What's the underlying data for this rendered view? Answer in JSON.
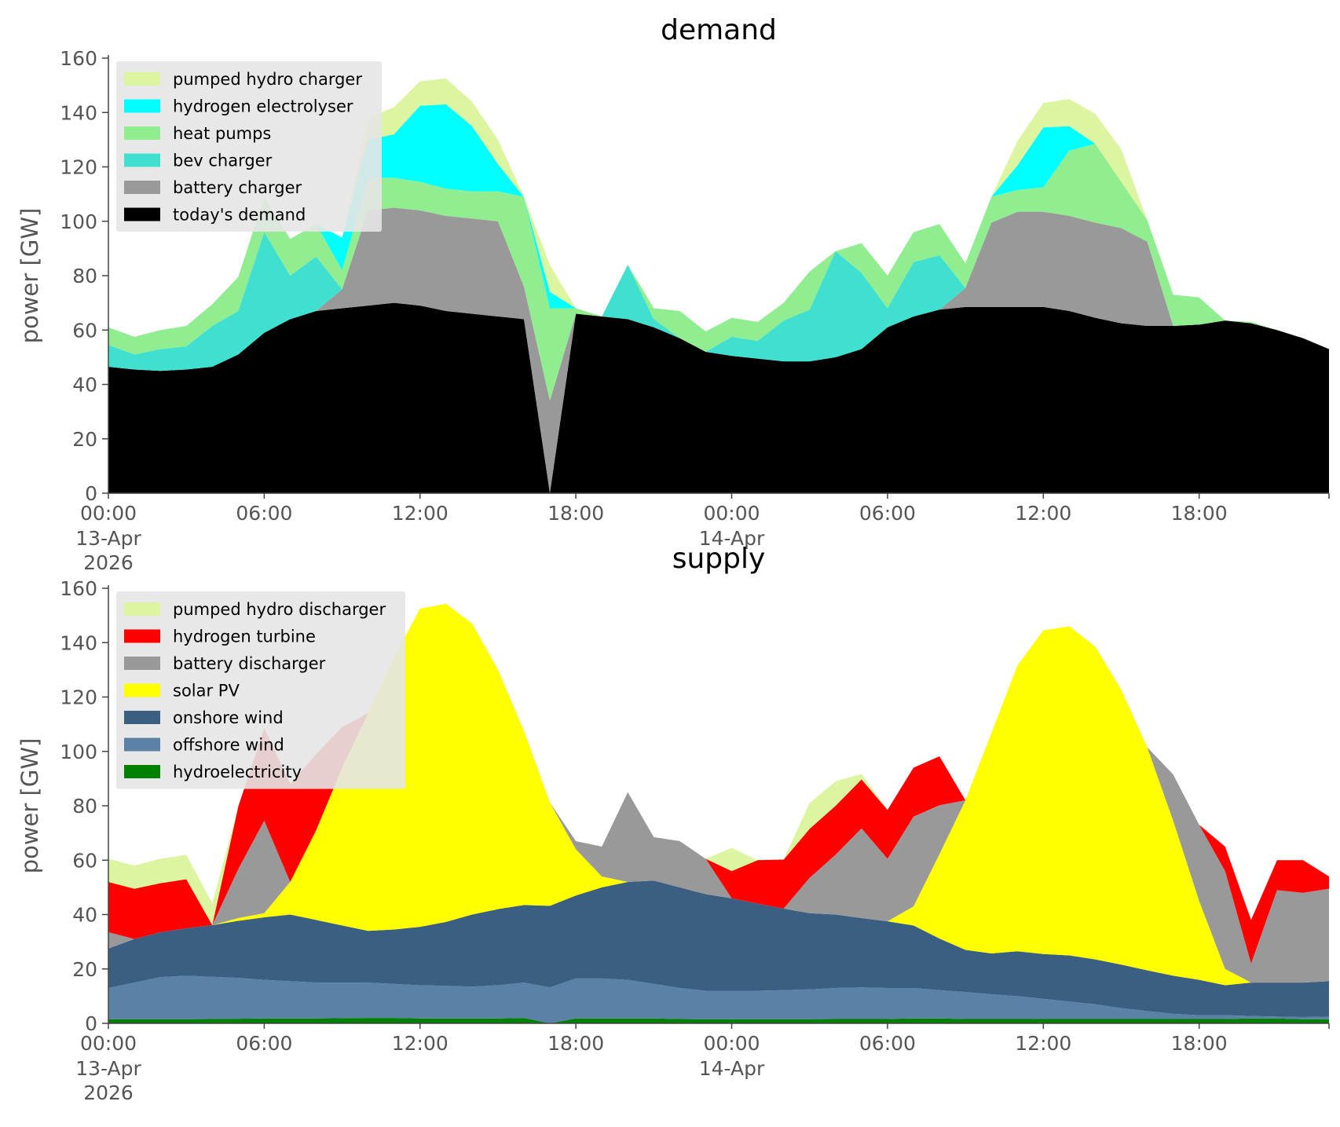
{
  "chart_data": [
    {
      "type": "area",
      "stacked": true,
      "title": "demand",
      "ylabel": "power [GW]",
      "ylim": [
        0,
        160
      ],
      "yticks": [
        0,
        20,
        40,
        60,
        80,
        100,
        120,
        140,
        160
      ],
      "x_hours": [
        0,
        1,
        2,
        3,
        4,
        5,
        6,
        7,
        8,
        9,
        10,
        11,
        12,
        13,
        14,
        15,
        16,
        17,
        18,
        19,
        20,
        21,
        22,
        23,
        24,
        25,
        26,
        27,
        28,
        29,
        30,
        31,
        32,
        33,
        34,
        35,
        36,
        37,
        38,
        39,
        40,
        41,
        42,
        43,
        44,
        45,
        46,
        47
      ],
      "xlim": [
        0,
        47
      ],
      "xticks": [
        {
          "hour": 0,
          "line1": "00:00",
          "line2": "13-Apr",
          "line3": "2026"
        },
        {
          "hour": 6,
          "line1": "06:00",
          "line2": "",
          "line3": ""
        },
        {
          "hour": 12,
          "line1": "12:00",
          "line2": "",
          "line3": ""
        },
        {
          "hour": 18,
          "line1": "18:00",
          "line2": "",
          "line3": ""
        },
        {
          "hour": 24,
          "line1": "00:00",
          "line2": "14-Apr",
          "line3": ""
        },
        {
          "hour": 30,
          "line1": "06:00",
          "line2": "",
          "line3": ""
        },
        {
          "hour": 36,
          "line1": "12:00",
          "line2": "",
          "line3": ""
        },
        {
          "hour": 42,
          "line1": "18:00",
          "line2": "",
          "line3": ""
        }
      ],
      "legend_position": "top-left",
      "series": [
        {
          "name": "today's demand",
          "color": "#000000",
          "values": [
            46.5,
            45.5,
            45,
            45.5,
            46.5,
            51,
            59,
            64,
            67,
            68,
            69,
            70,
            69,
            67,
            66,
            65,
            64,
            0,
            66,
            65,
            64,
            61,
            57,
            52,
            50.5,
            49.5,
            48.5,
            48.5,
            50,
            53,
            61,
            65,
            67.5,
            68.5,
            68.5,
            68.5,
            68.5,
            67,
            64.5,
            62.5,
            61.5,
            61.5,
            62,
            63.5,
            62.5,
            60,
            57,
            53
          ]
        },
        {
          "name": "battery charger",
          "color": "#999999",
          "values": [
            0,
            0,
            0,
            0,
            0,
            0,
            0,
            0,
            0,
            7,
            35,
            35,
            35,
            35,
            35,
            35,
            12,
            34,
            0,
            0,
            0,
            0,
            0,
            0,
            0,
            0,
            0,
            0,
            0,
            0,
            0,
            0,
            0,
            7,
            31,
            35,
            35,
            35,
            35,
            35,
            31,
            0,
            0,
            0,
            0,
            0,
            0,
            0
          ]
        },
        {
          "name": "bev charger",
          "color": "#40e0d0",
          "values": [
            8,
            5.5,
            8,
            8.5,
            15,
            16,
            37,
            16,
            20,
            0,
            0,
            0,
            0,
            0,
            0,
            0,
            0,
            0,
            0,
            0,
            20,
            3,
            0,
            0,
            7,
            6.5,
            15,
            19,
            39,
            28,
            7,
            20,
            20,
            0,
            0,
            0,
            0,
            0,
            0,
            0,
            0,
            0,
            0,
            0,
            0,
            0,
            0,
            0
          ]
        },
        {
          "name": "heat pumps",
          "color": "#90ee90",
          "values": [
            6.5,
            6.5,
            7,
            7.5,
            8,
            12.5,
            13,
            13.5,
            12,
            7,
            12,
            11,
            10.5,
            10,
            10,
            11,
            33,
            34,
            2,
            0,
            0,
            4,
            10,
            7.5,
            7,
            7,
            6.5,
            14,
            0,
            11,
            12,
            11,
            11.5,
            9,
            9.5,
            8,
            9,
            24,
            29,
            17,
            8,
            11.5,
            10,
            0,
            0.5,
            0,
            0,
            0
          ]
        },
        {
          "name": "hydrogen electrolyser",
          "color": "#00ffff",
          "values": [
            0,
            0,
            0,
            0,
            0,
            0,
            0,
            0,
            0,
            12,
            14,
            16,
            28,
            31,
            24,
            10,
            0,
            6,
            0,
            0,
            0,
            0,
            0,
            0,
            0,
            0,
            0,
            0,
            0,
            0,
            0,
            0,
            0,
            0,
            0,
            9,
            22,
            9,
            0,
            0,
            0,
            0,
            0,
            0,
            0,
            0,
            0,
            0
          ]
        },
        {
          "name": "pumped hydro charger",
          "color": "#dcf5a0",
          "values": [
            0,
            0,
            0,
            0,
            0,
            0,
            0,
            0,
            0,
            0,
            8,
            10,
            9,
            9.5,
            9,
            9,
            0,
            10,
            0,
            0,
            0,
            0,
            0,
            0,
            0,
            0,
            0,
            0,
            0,
            0,
            0,
            0,
            0,
            0,
            0,
            9,
            9,
            10,
            11,
            12,
            0,
            0,
            0,
            0,
            0,
            0,
            0,
            0
          ]
        }
      ],
      "legend_order": [
        "pumped hydro charger",
        "hydrogen electrolyser",
        "heat pumps",
        "bev charger",
        "battery charger",
        "today's demand"
      ]
    },
    {
      "type": "area",
      "stacked": true,
      "title": "supply",
      "ylabel": "power [GW]",
      "ylim": [
        0,
        160
      ],
      "yticks": [
        0,
        20,
        40,
        60,
        80,
        100,
        120,
        140,
        160
      ],
      "x_hours": [
        0,
        1,
        2,
        3,
        4,
        5,
        6,
        7,
        8,
        9,
        10,
        11,
        12,
        13,
        14,
        15,
        16,
        17,
        18,
        19,
        20,
        21,
        22,
        23,
        24,
        25,
        26,
        27,
        28,
        29,
        30,
        31,
        32,
        33,
        34,
        35,
        36,
        37,
        38,
        39,
        40,
        41,
        42,
        43,
        44,
        45,
        46,
        47
      ],
      "xlim": [
        0,
        47
      ],
      "xticks": [
        {
          "hour": 0,
          "line1": "00:00",
          "line2": "13-Apr",
          "line3": "2026"
        },
        {
          "hour": 6,
          "line1": "06:00",
          "line2": "",
          "line3": ""
        },
        {
          "hour": 12,
          "line1": "12:00",
          "line2": "",
          "line3": ""
        },
        {
          "hour": 18,
          "line1": "18:00",
          "line2": "",
          "line3": ""
        },
        {
          "hour": 24,
          "line1": "00:00",
          "line2": "14-Apr",
          "line3": ""
        },
        {
          "hour": 30,
          "line1": "06:00",
          "line2": "",
          "line3": ""
        },
        {
          "hour": 36,
          "line1": "12:00",
          "line2": "",
          "line3": ""
        },
        {
          "hour": 42,
          "line1": "18:00",
          "line2": "",
          "line3": ""
        }
      ],
      "legend_position": "top-left",
      "series": [
        {
          "name": "hydroelectricity",
          "color": "#008000",
          "values": [
            1.5,
            1.5,
            1.5,
            1.5,
            1.6,
            1.7,
            1.8,
            1.8,
            1.8,
            1.9,
            2,
            2,
            1.8,
            1.8,
            1.8,
            1.8,
            2,
            0,
            1.8,
            1.8,
            1.8,
            1.8,
            1.6,
            1.5,
            1.5,
            1.5,
            1.5,
            1.5,
            1.6,
            1.6,
            1.6,
            1.8,
            1.8,
            1.6,
            1.6,
            1.6,
            1.6,
            1.6,
            1.6,
            1.6,
            1.6,
            1.6,
            1.6,
            1.6,
            1.8,
            1.8,
            1.5,
            1.5
          ]
        },
        {
          "name": "offshore wind",
          "color": "#5b82a6",
          "values": [
            11.5,
            13.5,
            15.5,
            16,
            15.5,
            15,
            14.2,
            13.7,
            13.2,
            13.1,
            13,
            12.5,
            12.2,
            12,
            11.7,
            12.2,
            13,
            13.2,
            14.7,
            14.7,
            14.2,
            12.7,
            11.4,
            10.5,
            10.5,
            10.5,
            10.7,
            11,
            11.4,
            11.6,
            11.4,
            11.2,
            10.4,
            9.9,
            9.1,
            8.4,
            7.4,
            6.4,
            5.4,
            4,
            2.9,
            1.9,
            1.4,
            1.4,
            0.9,
            0.7,
            0.8,
            1
          ]
        },
        {
          "name": "onshore wind",
          "color": "#3b5f82",
          "values": [
            14.5,
            16,
            16.5,
            17.5,
            19,
            21,
            23,
            24.5,
            23,
            21,
            19,
            20,
            21.5,
            23.5,
            26.5,
            28,
            28.5,
            30,
            30.5,
            33.5,
            36,
            38,
            37,
            35.5,
            34,
            32,
            30,
            28,
            27,
            25.5,
            24.5,
            23,
            19,
            15.5,
            15,
            16.5,
            16.5,
            17,
            16.5,
            16,
            15,
            14,
            13,
            11,
            12.3,
            12.5,
            12.7,
            13
          ]
        },
        {
          "name": "solar PV",
          "color": "#ffff00",
          "values": [
            0,
            0,
            0,
            0,
            0,
            1,
            1.5,
            12,
            33,
            58,
            80,
            100,
            117,
            117,
            107,
            88,
            64,
            38,
            17,
            4,
            0,
            0,
            0,
            0,
            0,
            0,
            0,
            0,
            0,
            0,
            0,
            7,
            31,
            55,
            81,
            105,
            119,
            121,
            115,
            101,
            82,
            57,
            29,
            6,
            0,
            0,
            0,
            0
          ]
        },
        {
          "name": "battery discharger",
          "color": "#999999",
          "values": [
            6,
            0,
            0,
            0,
            0,
            18,
            34,
            0,
            0,
            0,
            0,
            0,
            0,
            0,
            0,
            0,
            0,
            0,
            3,
            11,
            33,
            16,
            17,
            13,
            0,
            0,
            0,
            13,
            22,
            33,
            23,
            33,
            18,
            0,
            0,
            0,
            0,
            0,
            0,
            0,
            0,
            17,
            28,
            36,
            7,
            34,
            33,
            34
          ]
        },
        {
          "name": "hydrogen turbine",
          "color": "#ff0000",
          "values": [
            18.5,
            18.5,
            18,
            18,
            0,
            23,
            34,
            36,
            28,
            15,
            0,
            0,
            0,
            0,
            0,
            0,
            0,
            0,
            0,
            0,
            0,
            0,
            0,
            0,
            10,
            16,
            18,
            18,
            18,
            18,
            18,
            18,
            18,
            0,
            0,
            0,
            0,
            0,
            0,
            0,
            0,
            0,
            0,
            9,
            16,
            11,
            12,
            4.5
          ]
        },
        {
          "name": "pumped hydro discharger",
          "color": "#dcf5a0",
          "values": [
            8.5,
            8.5,
            9,
            9,
            8,
            0,
            0,
            0,
            0,
            0,
            0,
            0,
            0,
            0,
            0,
            0,
            0,
            0,
            0,
            0,
            0,
            0,
            0,
            0,
            8.5,
            0,
            0,
            9.5,
            9,
            2,
            0,
            0,
            0,
            0,
            0,
            0,
            0,
            0,
            0,
            0,
            0,
            0,
            0,
            0,
            0,
            0,
            0,
            0
          ]
        }
      ],
      "legend_order": [
        "pumped hydro discharger",
        "hydrogen turbine",
        "battery discharger",
        "solar PV",
        "onshore wind",
        "offshore wind",
        "hydroelectricity"
      ]
    }
  ]
}
